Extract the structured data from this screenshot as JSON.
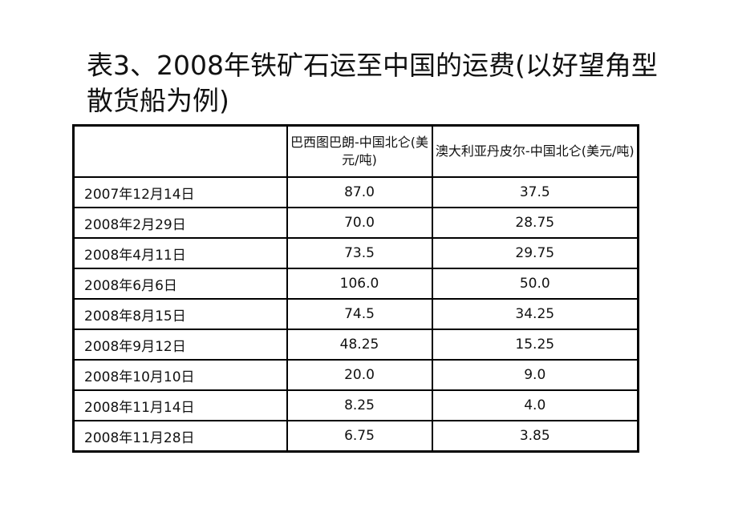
{
  "title": "表3、2008年铁矿石运至中国的运费(以好望角型散货船为例)",
  "table": {
    "headers": [
      "",
      "巴西图巴朗-中国北仑(美元/吨)",
      "澳大利亚丹皮尔-中国北仑(美元/吨)"
    ],
    "rows": [
      [
        "2007年12月14日",
        "87.0",
        "37.5"
      ],
      [
        "2008年2月29日",
        "70.0",
        "28.75"
      ],
      [
        "2008年4月11日",
        "73.5",
        "29.75"
      ],
      [
        "2008年6月6日",
        "106.0",
        "50.0"
      ],
      [
        "2008年8月15日",
        "74.5",
        "34.25"
      ],
      [
        "2008年9月12日",
        "48.25",
        "15.25"
      ],
      [
        "2008年10月10日",
        "20.0",
        "9.0"
      ],
      [
        "2008年11月14日",
        "8.25",
        "4.0"
      ],
      [
        "2008年11月28日",
        "6.75",
        "3.85"
      ]
    ]
  }
}
